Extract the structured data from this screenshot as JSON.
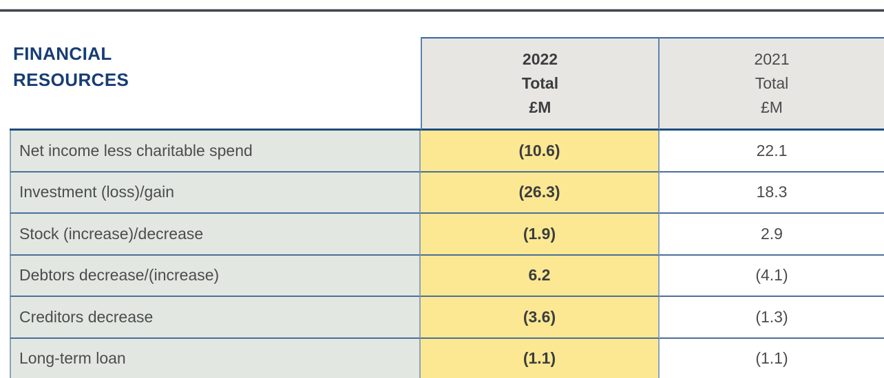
{
  "section": {
    "title_line1": "FINANCIAL",
    "title_line2": "RESOURCES"
  },
  "table": {
    "columns": [
      {
        "year": "2022",
        "sub": "Total",
        "unit": "£M",
        "highlighted": true
      },
      {
        "year": "2021",
        "sub": "Total",
        "unit": "£M",
        "highlighted": false
      }
    ],
    "rows": [
      {
        "label": "Net income less charitable spend",
        "y2022": "(10.6)",
        "y2021": "22.1"
      },
      {
        "label": "Investment (loss)/gain",
        "y2022": "(26.3)",
        "y2021": "18.3"
      },
      {
        "label": "Stock (increase)/decrease",
        "y2022": "(1.9)",
        "y2021": "2.9"
      },
      {
        "label": "Debtors decrease/(increase)",
        "y2022": "6.2",
        "y2021": "(4.1)"
      },
      {
        "label": "Creditors decrease",
        "y2022": "(3.6)",
        "y2021": "(1.3)"
      },
      {
        "label": "Long-term loan",
        "y2022": "(1.1)",
        "y2021": "(1.1)"
      }
    ]
  },
  "colors": {
    "title_navy": "#173d74",
    "highlight_yellow": "#fce892",
    "label_row_bg": "#e3e7e2",
    "header_bg": "#e8e6e3",
    "row_border_blue": "#4a6f97",
    "column_border_steel": "#8ca2b6",
    "header_rule_navy": "#1c4c7c",
    "top_rule_slate": "#42474d"
  }
}
